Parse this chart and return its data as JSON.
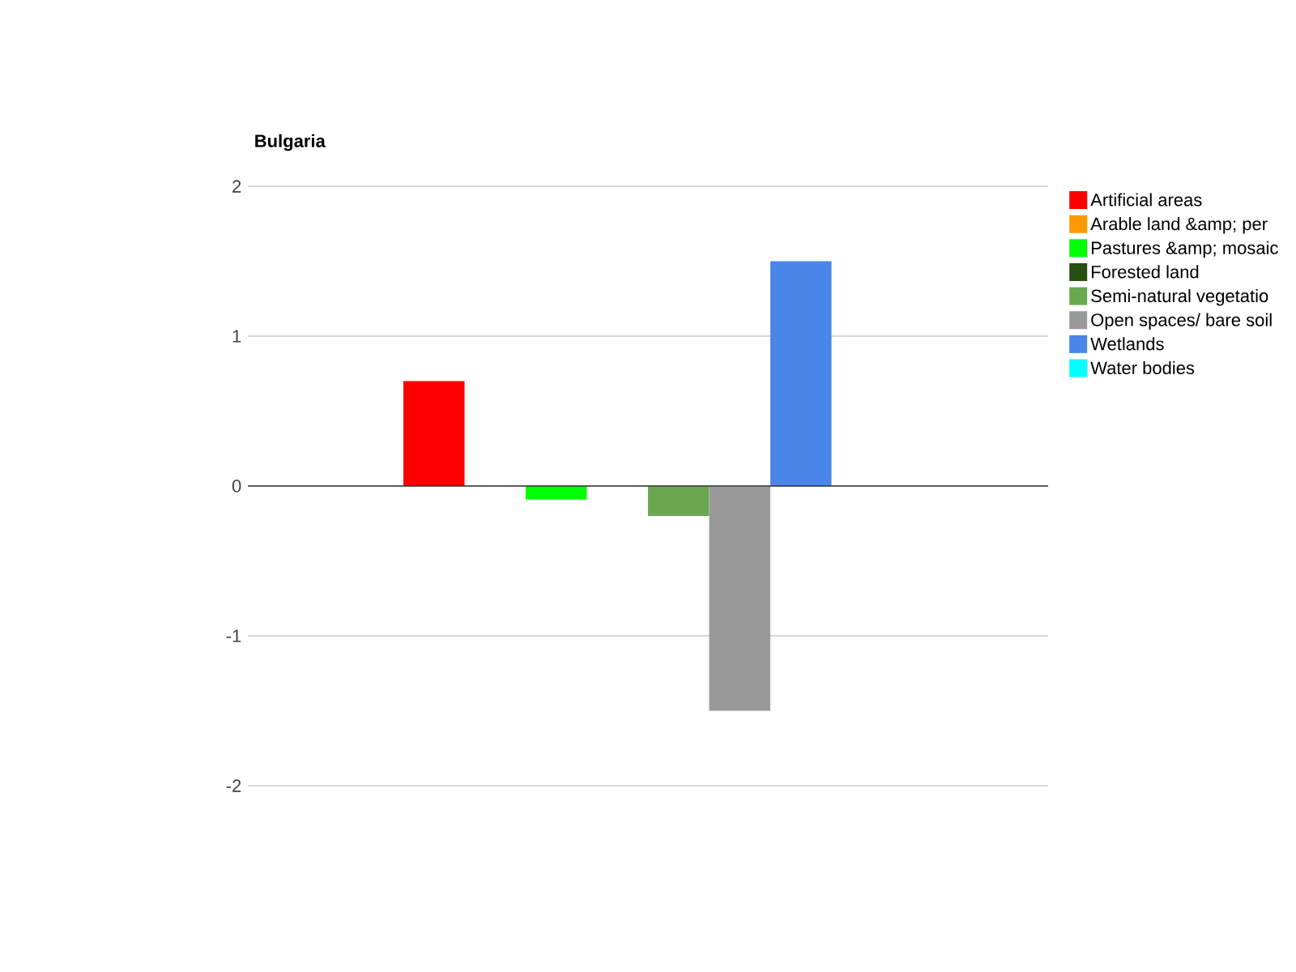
{
  "chart_data": {
    "type": "bar",
    "title": "Bulgaria",
    "categories": [
      null
    ],
    "series": [
      {
        "name": "Artificial areas",
        "color": "#ff0000",
        "values": [
          0.7
        ]
      },
      {
        "name": "Arable land &amp; per",
        "color": "#ff9900",
        "values": [
          0
        ]
      },
      {
        "name": "Pastures &amp; mosaic",
        "color": "#00ff00",
        "values": [
          -0.09
        ]
      },
      {
        "name": "Forested land",
        "color": "#274e13",
        "values": [
          0
        ]
      },
      {
        "name": "Semi-natural vegetatio",
        "color": "#6aa84f",
        "values": [
          -0.2
        ]
      },
      {
        "name": "Open spaces/ bare soil",
        "color": "#999999",
        "values": [
          -1.5
        ]
      },
      {
        "name": "Wetlands",
        "color": "#4a86e8",
        "values": [
          1.5
        ]
      },
      {
        "name": "Water bodies",
        "color": "#00ffff",
        "values": [
          0
        ]
      }
    ],
    "ylim": [
      -2,
      2
    ],
    "yticks": [
      -2,
      -1,
      0,
      1,
      2
    ],
    "grid": "y",
    "legend": "right"
  }
}
